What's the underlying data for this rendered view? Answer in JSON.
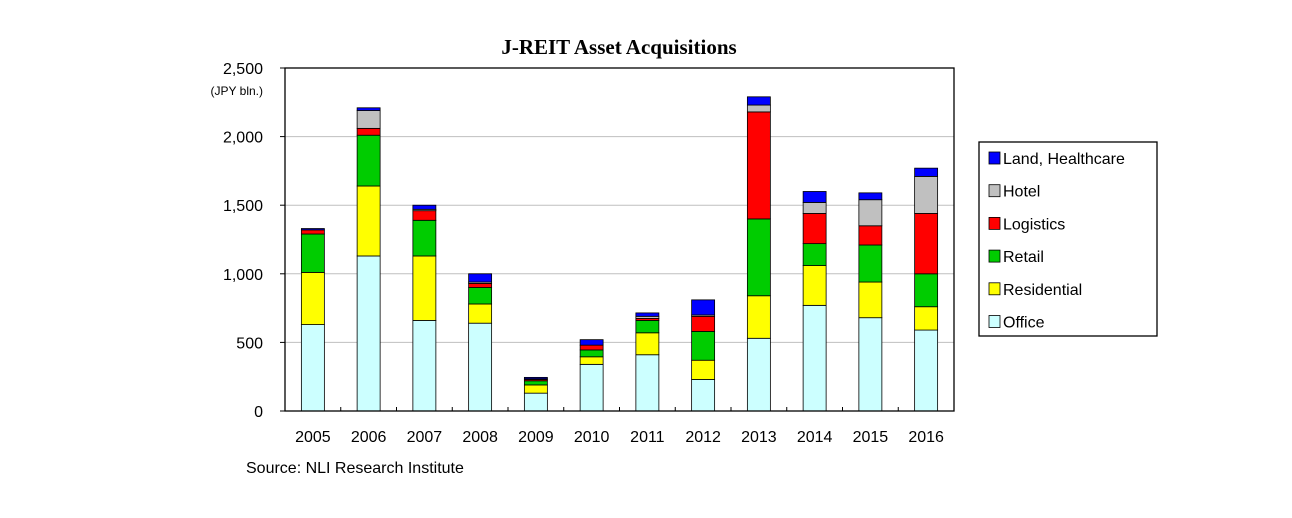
{
  "chart_data": {
    "type": "bar",
    "stacked": true,
    "title": "J-REIT Asset Acquisitions",
    "ylabel": "(JPY bln.)",
    "xlabel": "",
    "ylim": [
      0,
      2500
    ],
    "yticks": [
      0,
      500,
      1000,
      1500,
      2000,
      2500
    ],
    "ytick_labels": [
      "0",
      "500",
      "1,000",
      "1,500",
      "2,000",
      "2,500"
    ],
    "grid": true,
    "legend_position": "right",
    "categories": [
      "2005",
      "2006",
      "2007",
      "2008",
      "2009",
      "2010",
      "2011",
      "2012",
      "2013",
      "2014",
      "2015",
      "2016"
    ],
    "series": [
      {
        "name": "Office",
        "color": "#ccffff",
        "values": [
          630,
          1130,
          660,
          640,
          130,
          340,
          410,
          230,
          530,
          770,
          680,
          590
        ]
      },
      {
        "name": "Residential",
        "color": "#ffff00",
        "values": [
          380,
          510,
          470,
          140,
          60,
          55,
          160,
          140,
          310,
          290,
          260,
          170
        ]
      },
      {
        "name": "Retail",
        "color": "#00cc00",
        "values": [
          280,
          370,
          260,
          120,
          30,
          50,
          90,
          210,
          560,
          160,
          270,
          240
        ]
      },
      {
        "name": "Logistics",
        "color": "#ff0000",
        "values": [
          30,
          50,
          70,
          30,
          10,
          35,
          15,
          110,
          780,
          220,
          140,
          440
        ]
      },
      {
        "name": "Hotel",
        "color": "#c0c0c0",
        "values": [
          0,
          130,
          10,
          10,
          5,
          0,
          15,
          10,
          50,
          80,
          190,
          270
        ]
      },
      {
        "name": "Land, Healthcare",
        "color": "#0000ff",
        "values": [
          10,
          20,
          30,
          60,
          10,
          40,
          25,
          110,
          60,
          80,
          50,
          60
        ]
      }
    ],
    "source": "Source: NLI Research Institute"
  }
}
